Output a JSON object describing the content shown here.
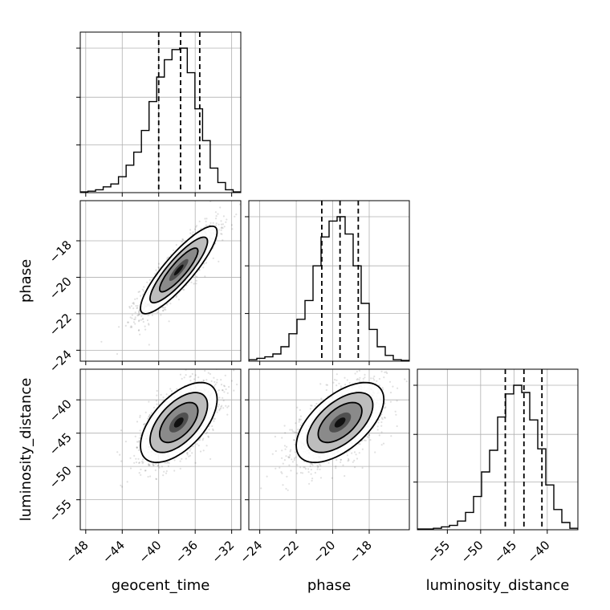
{
  "chart_data": {
    "type": "corner",
    "grid": true,
    "parameters": [
      "geocent_time",
      "phase",
      "luminosity_distance"
    ],
    "axis_labels": {
      "x": [
        "geocent_time",
        "phase",
        "luminosity_distance"
      ],
      "y": [
        "phase",
        "luminosity_distance"
      ]
    },
    "ranges": {
      "geocent_time": [
        -48.6,
        -31.0
      ],
      "phase": [
        -24.6,
        -15.8
      ],
      "luminosity_distance": [
        -59.5,
        -35.4
      ]
    },
    "ticks": {
      "geocent_time": [
        -48,
        -44,
        -40,
        -36,
        -32
      ],
      "phase": [
        -24,
        -22,
        -20,
        -18
      ],
      "luminosity_distance": [
        -55,
        -50,
        -45,
        -40
      ]
    },
    "tick_labels": {
      "geocent_time": [
        "−48",
        "−44",
        "−40",
        "−36",
        "−32"
      ],
      "phase": [
        "−24",
        "−22",
        "−20",
        "−18"
      ],
      "luminosity_distance": [
        "−55",
        "−50",
        "−45",
        "−40"
      ]
    },
    "quantiles": {
      "geocent_time": [
        -40.0,
        -37.6,
        -35.5
      ],
      "phase": [
        -20.6,
        -19.6,
        -18.6
      ],
      "luminosity_distance": [
        -46.3,
        -43.5,
        -40.8
      ]
    },
    "histograms": {
      "geocent_time": [
        0.005,
        0.01,
        0.02,
        0.04,
        0.06,
        0.11,
        0.19,
        0.28,
        0.43,
        0.63,
        0.8,
        0.92,
        0.99,
        1.0,
        0.83,
        0.58,
        0.36,
        0.17,
        0.07,
        0.02,
        0.005
      ],
      "phase": [
        0.01,
        0.02,
        0.03,
        0.05,
        0.1,
        0.19,
        0.29,
        0.42,
        0.66,
        0.86,
        0.97,
        1.0,
        0.88,
        0.66,
        0.4,
        0.22,
        0.1,
        0.04,
        0.01,
        0.005
      ],
      "luminosity_distance": [
        0.005,
        0.005,
        0.01,
        0.02,
        0.03,
        0.06,
        0.12,
        0.23,
        0.4,
        0.55,
        0.78,
        0.94,
        1.0,
        0.95,
        0.76,
        0.56,
        0.31,
        0.14,
        0.05,
        0.01
      ]
    },
    "pairs": [
      {
        "x": "geocent_time",
        "y": "phase",
        "mean": [
          -37.8,
          -19.6
        ],
        "std": [
          2.1,
          1.2
        ],
        "corr": 0.87
      },
      {
        "x": "geocent_time",
        "y": "luminosity_distance",
        "mean": [
          -37.8,
          -43.4
        ],
        "std": [
          2.1,
          3.0
        ],
        "corr": 0.58
      },
      {
        "x": "phase",
        "y": "luminosity_distance",
        "mean": [
          -19.6,
          -43.4
        ],
        "std": [
          1.2,
          3.0
        ],
        "corr": 0.58
      }
    ],
    "contour_levels_sigma": [
      0.5,
      1.0,
      1.5,
      2.0
    ]
  }
}
